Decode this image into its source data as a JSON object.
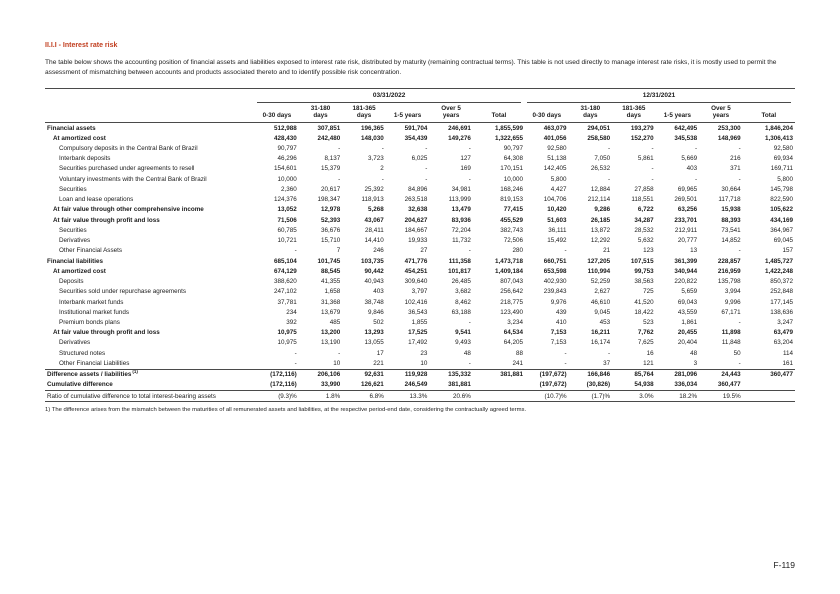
{
  "accent_color": "#c13d1e",
  "page": {
    "section_heading": "II.I.I - Interest rate risk",
    "intro": "The table below shows the accounting position of financial assets and liabilities exposed to interest rate risk, distributed by maturity (remaining contractual terms). This table is not used directly to manage interest rate risks, it is mostly used to permit the assessment of mismatching between accounts and products associated thereto and to identify possible risk concentration.",
    "footnote": "1) The difference arises from the mismatch between the maturities of all remunerated assets and liabilities, at the respective period-end date, considering the contractually agreed terms.",
    "page_number": "F-119"
  },
  "table": {
    "group_headers": [
      "03/31/2022",
      "12/31/2021"
    ],
    "col_headers": [
      "0-30 days",
      "31-180\ndays",
      "181-365\ndays",
      "1-5 years",
      "Over 5\nyears",
      "Total"
    ],
    "rows": [
      {
        "label": "Financial assets",
        "bold": true,
        "indent": 0,
        "v2022": [
          "512,988",
          "307,851",
          "196,365",
          "591,704",
          "246,691",
          "1,855,599"
        ],
        "v2021": [
          "463,079",
          "294,051",
          "193,279",
          "642,495",
          "253,300",
          "1,846,204"
        ]
      },
      {
        "label": "At amortized cost",
        "bold": true,
        "indent": 1,
        "v2022": [
          "428,430",
          "242,480",
          "148,030",
          "354,439",
          "149,276",
          "1,322,655"
        ],
        "v2021": [
          "401,056",
          "258,580",
          "152,270",
          "345,538",
          "148,969",
          "1,306,413"
        ]
      },
      {
        "label": "Compulsory deposits in the Central Bank of Brazil",
        "bold": false,
        "indent": 2,
        "v2022": [
          "90,797",
          "-",
          "-",
          "-",
          "-",
          "90,797"
        ],
        "v2021": [
          "92,580",
          "-",
          "-",
          "-",
          "-",
          "92,580"
        ]
      },
      {
        "label": "Interbank deposits",
        "bold": false,
        "indent": 2,
        "v2022": [
          "46,296",
          "8,137",
          "3,723",
          "6,025",
          "127",
          "64,308"
        ],
        "v2021": [
          "51,138",
          "7,050",
          "5,861",
          "5,669",
          "216",
          "69,934"
        ]
      },
      {
        "label": "Securities purchased under agreements to resell",
        "bold": false,
        "indent": 2,
        "v2022": [
          "154,601",
          "15,379",
          "2",
          "-",
          "169",
          "170,151"
        ],
        "v2021": [
          "142,405",
          "26,532",
          "-",
          "403",
          "371",
          "169,711"
        ]
      },
      {
        "label": "Voluntary investments with the Central Bank of Brazil",
        "bold": false,
        "indent": 2,
        "v2022": [
          "10,000",
          "-",
          "-",
          "-",
          "-",
          "10,000"
        ],
        "v2021": [
          "5,800",
          "-",
          "-",
          "-",
          "-",
          "5,800"
        ]
      },
      {
        "label": "Securities",
        "bold": false,
        "indent": 2,
        "v2022": [
          "2,360",
          "20,617",
          "25,392",
          "84,896",
          "34,981",
          "168,246"
        ],
        "v2021": [
          "4,427",
          "12,884",
          "27,858",
          "69,965",
          "30,664",
          "145,798"
        ]
      },
      {
        "label": "Loan and lease operations",
        "bold": false,
        "indent": 2,
        "v2022": [
          "124,376",
          "198,347",
          "118,913",
          "263,518",
          "113,999",
          "819,153"
        ],
        "v2021": [
          "104,706",
          "212,114",
          "118,551",
          "269,501",
          "117,718",
          "822,590"
        ]
      },
      {
        "label": "At fair value through other comprehensive income",
        "bold": true,
        "indent": 1,
        "v2022": [
          "13,052",
          "12,978",
          "5,268",
          "32,638",
          "13,479",
          "77,415"
        ],
        "v2021": [
          "10,420",
          "9,286",
          "6,722",
          "63,256",
          "15,938",
          "105,622"
        ]
      },
      {
        "label": "At fair value through profit and loss",
        "bold": true,
        "indent": 1,
        "v2022": [
          "71,506",
          "52,393",
          "43,067",
          "204,627",
          "83,936",
          "455,529"
        ],
        "v2021": [
          "51,603",
          "26,185",
          "34,287",
          "233,701",
          "88,393",
          "434,169"
        ]
      },
      {
        "label": "Securities",
        "bold": false,
        "indent": 2,
        "v2022": [
          "60,785",
          "36,676",
          "28,411",
          "184,667",
          "72,204",
          "382,743"
        ],
        "v2021": [
          "36,111",
          "13,872",
          "28,532",
          "212,911",
          "73,541",
          "364,967"
        ]
      },
      {
        "label": "Derivatives",
        "bold": false,
        "indent": 2,
        "v2022": [
          "10,721",
          "15,710",
          "14,410",
          "19,933",
          "11,732",
          "72,506"
        ],
        "v2021": [
          "15,492",
          "12,292",
          "5,632",
          "20,777",
          "14,852",
          "69,045"
        ]
      },
      {
        "label": "Other Financial Assets",
        "bold": false,
        "indent": 2,
        "v2022": [
          "-",
          "7",
          "246",
          "27",
          "-",
          "280"
        ],
        "v2021": [
          "-",
          "21",
          "123",
          "13",
          "-",
          "157"
        ]
      },
      {
        "label": "Financial liabilities",
        "bold": true,
        "indent": 0,
        "v2022": [
          "685,104",
          "101,745",
          "103,735",
          "471,776",
          "111,358",
          "1,473,718"
        ],
        "v2021": [
          "660,751",
          "127,205",
          "107,515",
          "361,399",
          "228,857",
          "1,485,727"
        ]
      },
      {
        "label": "At amortized cost",
        "bold": true,
        "indent": 1,
        "v2022": [
          "674,129",
          "88,545",
          "90,442",
          "454,251",
          "101,817",
          "1,409,184"
        ],
        "v2021": [
          "653,598",
          "110,994",
          "99,753",
          "340,944",
          "216,959",
          "1,422,248"
        ]
      },
      {
        "label": "Deposits",
        "bold": false,
        "indent": 2,
        "v2022": [
          "388,620",
          "41,355",
          "40,943",
          "309,640",
          "26,485",
          "807,043"
        ],
        "v2021": [
          "402,930",
          "52,259",
          "38,563",
          "220,822",
          "135,798",
          "850,372"
        ]
      },
      {
        "label": "Securities sold under repurchase agreements",
        "bold": false,
        "indent": 2,
        "v2022": [
          "247,102",
          "1,658",
          "403",
          "3,797",
          "3,682",
          "256,642"
        ],
        "v2021": [
          "239,843",
          "2,627",
          "725",
          "5,659",
          "3,994",
          "252,848"
        ]
      },
      {
        "label": "Interbank market funds",
        "bold": false,
        "indent": 2,
        "v2022": [
          "37,781",
          "31,368",
          "38,748",
          "102,416",
          "8,462",
          "218,775"
        ],
        "v2021": [
          "9,976",
          "46,610",
          "41,520",
          "69,043",
          "9,996",
          "177,145"
        ]
      },
      {
        "label": "Institutional market funds",
        "bold": false,
        "indent": 2,
        "v2022": [
          "234",
          "13,679",
          "9,846",
          "36,543",
          "63,188",
          "123,490"
        ],
        "v2021": [
          "439",
          "9,045",
          "18,422",
          "43,559",
          "67,171",
          "138,636"
        ]
      },
      {
        "label": "Premium bonds plans",
        "bold": false,
        "indent": 2,
        "v2022": [
          "392",
          "485",
          "502",
          "1,855",
          "-",
          "3,234"
        ],
        "v2021": [
          "410",
          "453",
          "523",
          "1,861",
          "-",
          "3,247"
        ]
      },
      {
        "label": "At fair value through profit and loss",
        "bold": true,
        "indent": 1,
        "v2022": [
          "10,975",
          "13,200",
          "13,293",
          "17,525",
          "9,541",
          "64,534"
        ],
        "v2021": [
          "7,153",
          "16,211",
          "7,762",
          "20,455",
          "11,898",
          "63,479"
        ]
      },
      {
        "label": "Derivatives",
        "bold": false,
        "indent": 2,
        "v2022": [
          "10,975",
          "13,190",
          "13,055",
          "17,492",
          "9,493",
          "64,205"
        ],
        "v2021": [
          "7,153",
          "16,174",
          "7,625",
          "20,404",
          "11,848",
          "63,204"
        ]
      },
      {
        "label": "Structured notes",
        "bold": false,
        "indent": 2,
        "v2022": [
          "-",
          "-",
          "17",
          "23",
          "48",
          "88"
        ],
        "v2021": [
          "-",
          "-",
          "16",
          "48",
          "50",
          "114"
        ]
      },
      {
        "label": "Other Financial Liabilities",
        "bold": false,
        "indent": 2,
        "v2022": [
          "-",
          "10",
          "221",
          "10",
          "-",
          "241"
        ],
        "v2021": [
          "-",
          "37",
          "121",
          "3",
          "-",
          "161"
        ]
      },
      {
        "label": "Difference assets / liabilities",
        "sup": "(1)",
        "bold": true,
        "indent": 0,
        "topline": true,
        "v2022": [
          "(172,116)",
          "206,106",
          "92,631",
          "119,928",
          "135,332",
          "381,881"
        ],
        "v2021": [
          "(197,672)",
          "166,846",
          "85,764",
          "281,096",
          "24,443",
          "360,477"
        ]
      },
      {
        "label": "Cumulative difference",
        "bold": true,
        "indent": 0,
        "v2022": [
          "(172,116)",
          "33,990",
          "126,621",
          "246,549",
          "381,881",
          ""
        ],
        "v2021": [
          "(197,672)",
          "(30,826)",
          "54,938",
          "336,034",
          "360,477",
          ""
        ]
      },
      {
        "label": "Ratio of cumulative difference to total interest-bearing assets",
        "bold": false,
        "indent": 0,
        "topline": true,
        "v2022": [
          "(9.3)%",
          "1.8%",
          "6.8%",
          "13.3%",
          "20.6%",
          ""
        ],
        "v2021": [
          "(10.7)%",
          "(1.7)%",
          "3.0%",
          "18.2%",
          "19.5%",
          ""
        ]
      }
    ]
  }
}
